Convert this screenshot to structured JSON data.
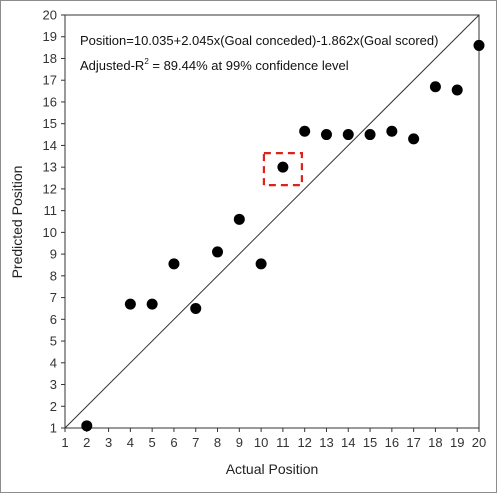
{
  "chart_data": {
    "type": "scatter",
    "xlabel": "Actual Position",
    "ylabel": "Predicted Position",
    "xlim": [
      1,
      20
    ],
    "ylim": [
      1,
      20
    ],
    "xticks": [
      1,
      2,
      3,
      4,
      5,
      6,
      7,
      8,
      9,
      10,
      11,
      12,
      13,
      14,
      15,
      16,
      17,
      18,
      19,
      20
    ],
    "yticks": [
      1,
      2,
      3,
      4,
      5,
      6,
      7,
      8,
      9,
      10,
      11,
      12,
      13,
      14,
      15,
      16,
      17,
      18,
      19,
      20
    ],
    "grid": false,
    "reference_line": {
      "from": [
        1,
        1
      ],
      "to": [
        20,
        20
      ]
    },
    "annotations": {
      "equation": "Position=10.035+2.045x(Goal conceded)-1.862x(Goal scored)",
      "r2_prefix": "Adjusted-R",
      "r2_sup": "2",
      "r2_suffix": " = 89.44% at 99% confidence level"
    },
    "highlight": {
      "x": 11,
      "y": 13.0,
      "style": "red dashed box"
    },
    "points": [
      {
        "x": 2,
        "y": 1.1
      },
      {
        "x": 4,
        "y": 6.7
      },
      {
        "x": 5,
        "y": 6.7
      },
      {
        "x": 6,
        "y": 8.55
      },
      {
        "x": 7,
        "y": 6.5
      },
      {
        "x": 8,
        "y": 9.1
      },
      {
        "x": 9,
        "y": 10.6
      },
      {
        "x": 10,
        "y": 8.55
      },
      {
        "x": 11,
        "y": 13.0
      },
      {
        "x": 12,
        "y": 14.65
      },
      {
        "x": 13,
        "y": 14.5
      },
      {
        "x": 14,
        "y": 14.5
      },
      {
        "x": 15,
        "y": 14.5
      },
      {
        "x": 16,
        "y": 14.65
      },
      {
        "x": 17,
        "y": 14.3
      },
      {
        "x": 18,
        "y": 16.7
      },
      {
        "x": 19,
        "y": 16.55
      },
      {
        "x": 20,
        "y": 18.6
      }
    ],
    "colors": {
      "marker": "#000000",
      "highlight": "#e0201b",
      "line": "#333333"
    }
  }
}
